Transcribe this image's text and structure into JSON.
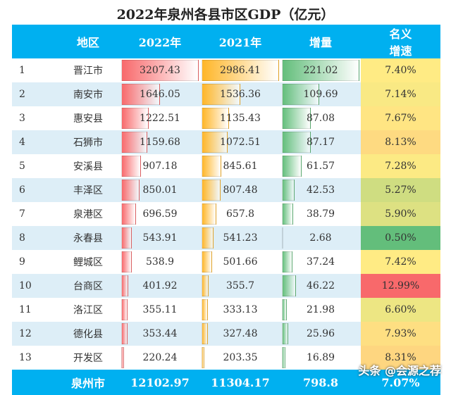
{
  "chart_data": {
    "type": "table",
    "title": "2022年泉州各县市区GDP（亿元）",
    "columns": [
      "",
      "地区",
      "2022年",
      "2021年",
      "增量",
      "名义增速"
    ],
    "header_rate_lines": [
      "名义",
      "增速"
    ],
    "rows": [
      [
        "1",
        "晋江市",
        3207.43,
        2986.41,
        221.02,
        "7.40%"
      ],
      [
        "2",
        "南安市",
        1646.05,
        1536.36,
        109.69,
        "7.14%"
      ],
      [
        "3",
        "惠安县",
        1222.51,
        1135.43,
        87.08,
        "7.67%"
      ],
      [
        "4",
        "石狮市",
        1159.68,
        1072.51,
        87.17,
        "8.13%"
      ],
      [
        "5",
        "安溪县",
        907.18,
        845.61,
        61.57,
        "7.28%"
      ],
      [
        "6",
        "丰泽区",
        850.01,
        807.48,
        42.53,
        "5.27%"
      ],
      [
        "7",
        "泉港区",
        696.59,
        657.8,
        38.79,
        "5.90%"
      ],
      [
        "8",
        "永春县",
        543.91,
        541.23,
        2.68,
        "0.50%"
      ],
      [
        "9",
        "鲤城区",
        538.9,
        501.66,
        37.24,
        "7.42%"
      ],
      [
        "10",
        "台商区",
        401.92,
        355.7,
        46.22,
        "12.99%"
      ],
      [
        "11",
        "洛江区",
        355.11,
        333.13,
        21.98,
        "6.60%"
      ],
      [
        "12",
        "德化县",
        353.44,
        327.48,
        25.96,
        "7.93%"
      ],
      [
        "13",
        "开发区",
        220.24,
        203.35,
        16.89,
        "8.31%"
      ]
    ],
    "total": [
      "",
      "泉州市",
      "12102.97",
      "11304.17",
      "798.8",
      "7.07%"
    ],
    "bar_colors": [
      "#f8696b",
      "#ffb628",
      "#63be7b"
    ],
    "heat_colors": {
      "min": "#63be7b",
      "mid": "#ffeb84",
      "max": "#f8696b"
    }
  },
  "watermark": "头条 @会源之荐"
}
